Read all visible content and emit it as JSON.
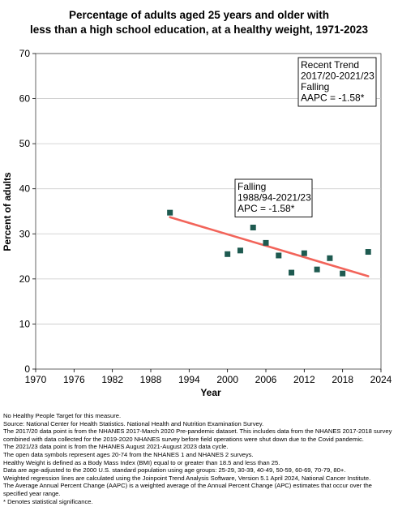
{
  "chart_data": {
    "type": "scatter",
    "title_lines": [
      "Percentage of adults aged 25 years and older with",
      "less than a high school education, at a healthy weight, 1971-2023"
    ],
    "xlabel": "Year",
    "ylabel": "Percent of adults",
    "xlim": [
      1970,
      2024
    ],
    "ylim": [
      0,
      70
    ],
    "x_ticks": [
      1970,
      1976,
      1982,
      1988,
      1994,
      2000,
      2006,
      2012,
      2018,
      2024
    ],
    "y_ticks": [
      0,
      10,
      20,
      30,
      40,
      50,
      60,
      70
    ],
    "grid": "horizontal",
    "points": [
      {
        "x": 1991,
        "y": 34.7
      },
      {
        "x": 2000,
        "y": 25.5
      },
      {
        "x": 2002,
        "y": 26.3
      },
      {
        "x": 2004,
        "y": 31.4
      },
      {
        "x": 2006,
        "y": 28.0
      },
      {
        "x": 2008,
        "y": 25.2
      },
      {
        "x": 2010,
        "y": 21.4
      },
      {
        "x": 2012,
        "y": 25.7
      },
      {
        "x": 2014,
        "y": 22.1
      },
      {
        "x": 2016,
        "y": 24.6
      },
      {
        "x": 2018,
        "y": 21.2
      },
      {
        "x": 2022,
        "y": 26.0
      }
    ],
    "trend_line": {
      "x": [
        1991,
        2022
      ],
      "y": [
        33.7,
        20.6
      ],
      "color": "#f2645a"
    },
    "point_color": "#1e5a50",
    "annotations": [
      {
        "lines": [
          "Falling",
          "1988/94-2021/23",
          "APC = -1.58*"
        ],
        "position": "middle-center"
      },
      {
        "lines": [
          "Recent Trend",
          "2017/20-2021/23",
          "Falling",
          "AAPC = -1.58*"
        ],
        "position": "top-right"
      }
    ]
  },
  "notes": [
    "No Healthy People Target for this measure.",
    "Source: National Center for Health Statistics. National Health and Nutrition Examination Survey.",
    "The 2017/20 data point is from the NHANES 2017-March 2020 Pre-pandemic dataset. This includes data from the NHANES 2017-2018 survey combined with data collected for the 2019-2020 NHANES survey before field operations were shut down due to the Covid pandemic.",
    "The 2021/23 data point is from the NHANES August 2021-August 2023 data cycle.",
    "The open data symbols represent ages 20-74 from the NHANES 1 and NHANES 2 surveys.",
    "Healthy Weight is defined as a Body Mass Index (BMI) equal to or greater than 18.5 and less than 25.",
    "Data are age-adjusted to the 2000 U.S. standard population using age groups: 25-29, 30-39, 40-49, 50-59, 60-69, 70-79, 80+.",
    "Weighted regression lines are calculated using the Joinpoint Trend Analysis Software, Version 5.1 April 2024, National Cancer Institute.",
    "The Average Annual Percent Change (AAPC) is a weighted average of the Annual Percent Change (APC) estimates that occur over the specified year range.",
    "* Denotes statistical significance."
  ]
}
